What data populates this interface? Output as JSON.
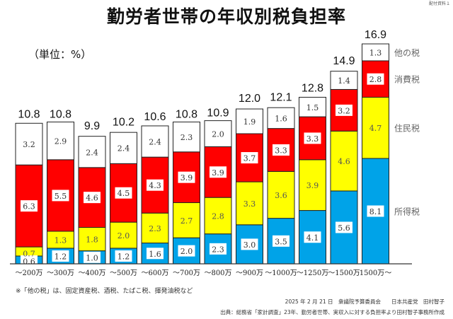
{
  "doc_tag": "配付資料１",
  "unit_label": "（単位：%）",
  "note": "※「他の税」は、固定資産税、酒税、たばこ税、揮発油税など",
  "footer": {
    "line1": "2025 年 2 月 21 日　衆議院予算委員会　　日本共産党　田村智子",
    "line2": "出典：総務省「家計調査」23年、勤労者世帯、実収入に対する負担率より田村智子事務所作成"
  },
  "chart_data": {
    "type": "bar",
    "stacked": true,
    "title": "勤労者世帯の年収別税負担率",
    "xlabel": "",
    "ylabel": "",
    "unit": "%",
    "ylim": [
      0,
      17
    ],
    "grid": false,
    "legend_placement": "right (inline labels beside last bar)",
    "categories": [
      "～200万",
      "～300万",
      "～400万",
      "～500万",
      "～600万",
      "～700万",
      "～800万",
      "～900万",
      "～1000万",
      "～1250万",
      "～1500万",
      "1500万～"
    ],
    "series": [
      {
        "name": "所得税",
        "color": "#00a3e8",
        "values": [
          0.6,
          1.2,
          1.0,
          1.2,
          1.6,
          2.0,
          2.3,
          3.0,
          3.5,
          4.1,
          5.6,
          8.1
        ]
      },
      {
        "name": "住民税",
        "color": "#ffff00",
        "values": [
          0.7,
          1.3,
          1.8,
          2.0,
          2.3,
          2.7,
          2.8,
          3.3,
          3.6,
          3.9,
          4.6,
          4.7
        ]
      },
      {
        "name": "消費税",
        "color": "#ff0000",
        "values": [
          6.3,
          5.5,
          4.6,
          4.5,
          4.3,
          3.9,
          3.9,
          3.7,
          3.3,
          3.3,
          3.2,
          2.8
        ]
      },
      {
        "name": "他の税",
        "color": "#ffffff",
        "values": [
          3.2,
          2.9,
          2.4,
          2.4,
          2.4,
          2.3,
          2.0,
          1.9,
          1.6,
          1.5,
          1.4,
          1.3
        ]
      }
    ],
    "totals": [
      10.8,
      10.8,
      9.9,
      10.2,
      10.6,
      10.8,
      10.9,
      12.0,
      12.1,
      12.8,
      14.9,
      16.9
    ]
  }
}
